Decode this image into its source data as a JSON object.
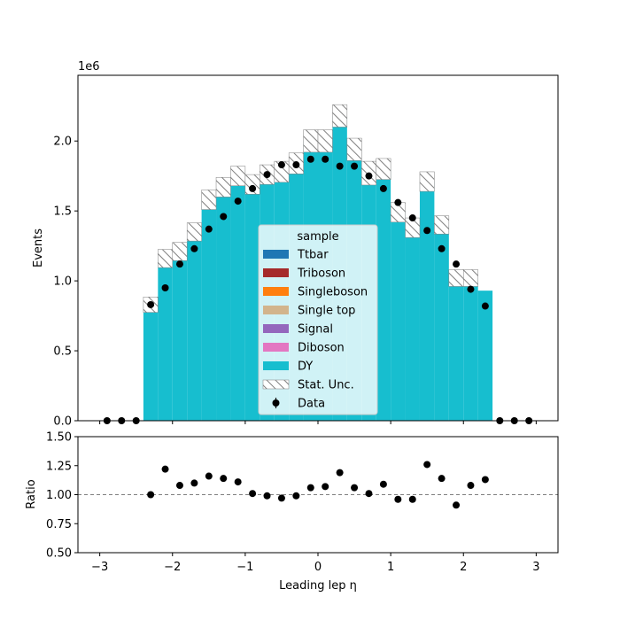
{
  "chart_data": [
    {
      "type": "bar",
      "ylabel": "Events",
      "offset_text": "1e6",
      "xlim": [
        -3.3,
        3.3
      ],
      "ylim": [
        0,
        2.47
      ],
      "y_unit_scale": 1000000,
      "xticks": [
        -3,
        -2,
        -1,
        0,
        1,
        2,
        3
      ],
      "yticks": [
        0.0,
        0.5,
        1.0,
        1.5,
        2.0
      ],
      "ytick_labels": [
        "0.0",
        "0.5",
        "1.0",
        "1.5",
        "2.0"
      ],
      "bin_edges": [
        -3.0,
        -2.8,
        -2.6,
        -2.4,
        -2.2,
        -2.0,
        -1.8,
        -1.6,
        -1.4,
        -1.2,
        -1.0,
        -0.8,
        -0.6,
        -0.4,
        -0.2,
        0.0,
        0.2,
        0.4,
        0.6,
        0.8,
        1.0,
        1.2,
        1.4,
        1.6,
        1.8,
        2.0,
        2.2,
        2.4,
        2.6,
        2.8,
        3.0
      ],
      "mc_total": [
        0,
        0,
        0,
        0.83,
        1.16,
        1.21,
        1.35,
        1.58,
        1.67,
        1.75,
        1.69,
        1.76,
        1.78,
        1.84,
        2.0,
        2.0,
        2.18,
        1.94,
        1.77,
        1.8,
        1.49,
        1.38,
        1.71,
        1.4,
        1.02,
        1.02,
        0.93,
        0,
        0,
        0
      ],
      "stat_unc": [
        0,
        0,
        0,
        0.11,
        0.13,
        0.13,
        0.13,
        0.14,
        0.14,
        0.14,
        0.14,
        0.14,
        0.15,
        0.15,
        0.16,
        0.16,
        0.16,
        0.16,
        0.17,
        0.15,
        0.14,
        0.14,
        0.14,
        0.13,
        0.12,
        0.12,
        0,
        0,
        0,
        0
      ],
      "series": [
        {
          "name": "Ttbar",
          "color": "#1f77b4"
        },
        {
          "name": "Triboson",
          "color": "#a52a2a"
        },
        {
          "name": "Singleboson",
          "color": "#ff7f0e"
        },
        {
          "name": "Single top",
          "color": "#d2b48c"
        },
        {
          "name": "Signal",
          "color": "#9467bd"
        },
        {
          "name": "Diboson",
          "color": "#e377c2"
        },
        {
          "name": "DY",
          "color": "#17becf"
        }
      ],
      "data_x": [
        -2.9,
        -2.7,
        -2.5,
        -2.3,
        -2.1,
        -1.9,
        -1.7,
        -1.5,
        -1.3,
        -1.1,
        -0.9,
        -0.7,
        -0.5,
        -0.3,
        -0.1,
        0.1,
        0.3,
        0.5,
        0.7,
        0.9,
        1.1,
        1.3,
        1.5,
        1.7,
        1.9,
        2.1,
        2.3,
        2.5,
        2.7,
        2.9
      ],
      "data_y": [
        0,
        0,
        0,
        0.83,
        0.95,
        1.12,
        1.23,
        1.37,
        1.46,
        1.57,
        1.66,
        1.76,
        1.83,
        1.83,
        1.87,
        1.87,
        1.82,
        1.82,
        1.75,
        1.66,
        1.56,
        1.45,
        1.36,
        1.23,
        1.12,
        0.94,
        0.82,
        0,
        0,
        0
      ],
      "legend": {
        "title": "sample",
        "entries": [
          "Ttbar",
          "Triboson",
          "Singleboson",
          "Single top",
          "Signal",
          "Diboson",
          "DY",
          "Stat. Unc.",
          "Data"
        ],
        "placement": "lower-center"
      }
    },
    {
      "type": "scatter",
      "xlabel": "Leading lep η",
      "ylabel": "Ratio",
      "xlim": [
        -3.3,
        3.3
      ],
      "ylim": [
        0.5,
        1.5
      ],
      "xticks": [
        -3,
        -2,
        -1,
        0,
        1,
        2,
        3
      ],
      "xtick_labels": [
        "−3",
        "−2",
        "−1",
        "0",
        "1",
        "2",
        "3"
      ],
      "yticks": [
        0.5,
        0.75,
        1.0,
        1.25,
        1.5
      ],
      "ytick_labels": [
        "0.50",
        "0.75",
        "1.00",
        "1.25",
        "1.50"
      ],
      "reference_line": 1.0,
      "x": [
        -2.3,
        -2.1,
        -1.9,
        -1.7,
        -1.5,
        -1.3,
        -1.1,
        -0.9,
        -0.7,
        -0.5,
        -0.3,
        -0.1,
        0.1,
        0.3,
        0.5,
        0.7,
        0.9,
        1.1,
        1.3,
        1.5,
        1.7,
        1.9,
        2.1,
        2.3
      ],
      "y": [
        1.0,
        1.22,
        1.08,
        1.1,
        1.16,
        1.14,
        1.11,
        1.01,
        0.99,
        0.97,
        0.99,
        1.06,
        1.07,
        1.19,
        1.06,
        1.01,
        1.09,
        0.96,
        0.96,
        1.26,
        1.14,
        0.91,
        1.08,
        1.13
      ]
    }
  ]
}
